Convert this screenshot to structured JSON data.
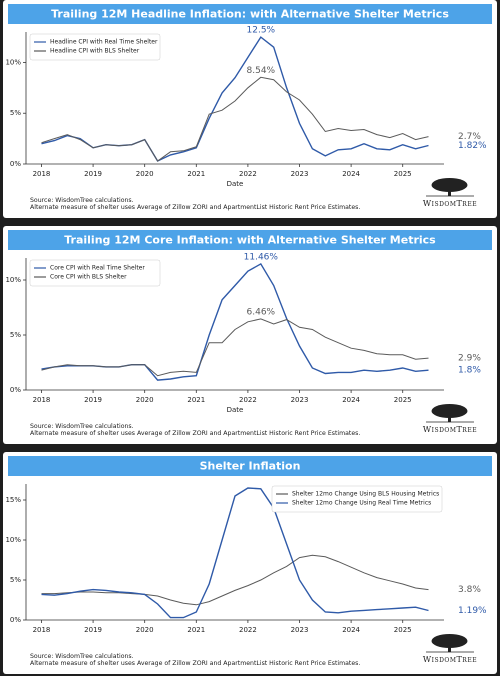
{
  "chart_data": [
    {
      "type": "line",
      "title": "Trailing 12M Headline Inflation: with Alternative Shelter Metrics",
      "x": [
        2018,
        2018.25,
        2018.5,
        2018.75,
        2019,
        2019.25,
        2019.5,
        2019.75,
        2020,
        2020.25,
        2020.5,
        2020.75,
        2021,
        2021.25,
        2021.5,
        2021.75,
        2022,
        2022.25,
        2022.5,
        2022.75,
        2023,
        2023.25,
        2023.5,
        2023.75,
        2024,
        2024.25,
        2024.5,
        2024.75,
        2025,
        2025.25,
        2025.5
      ],
      "series": [
        {
          "name": "Headline CPI with Real Time Shelter",
          "color": "#2f5aa8",
          "values": [
            2.0,
            2.3,
            2.8,
            2.5,
            1.6,
            1.9,
            1.8,
            1.9,
            2.4,
            0.3,
            0.9,
            1.2,
            1.6,
            4.5,
            7.0,
            8.5,
            10.5,
            12.5,
            11.5,
            7.5,
            4.0,
            1.5,
            0.8,
            1.4,
            1.5,
            2.0,
            1.5,
            1.4,
            1.9,
            1.5,
            1.82
          ],
          "value_labels": [
            null,
            null,
            null,
            null,
            null,
            null,
            null,
            null,
            null,
            null,
            null,
            null,
            null,
            null,
            null,
            null,
            null,
            "12.5%",
            null,
            null,
            null,
            null,
            null,
            null,
            null,
            null,
            null,
            null,
            null,
            null,
            "1.82%"
          ]
        },
        {
          "name": "Headline CPI with BLS Shelter",
          "color": "#5a5a5a",
          "values": [
            2.1,
            2.5,
            2.9,
            2.4,
            1.6,
            1.9,
            1.8,
            1.9,
            2.4,
            0.3,
            1.2,
            1.3,
            1.7,
            4.9,
            5.3,
            6.2,
            7.5,
            8.54,
            8.3,
            7.1,
            6.3,
            4.9,
            3.2,
            3.5,
            3.3,
            3.4,
            2.9,
            2.6,
            3.0,
            2.4,
            2.7
          ],
          "value_labels": [
            null,
            null,
            null,
            null,
            null,
            null,
            null,
            null,
            null,
            null,
            null,
            null,
            null,
            null,
            null,
            null,
            null,
            "8.54%",
            null,
            null,
            null,
            null,
            null,
            null,
            null,
            null,
            null,
            null,
            null,
            null,
            "2.7%"
          ]
        }
      ],
      "xlim": [
        2017.7,
        2025.8
      ],
      "ylim": [
        0,
        13
      ],
      "xticks": [
        2018,
        2019,
        2020,
        2021,
        2022,
        2023,
        2024,
        2025
      ],
      "yticks": [
        {
          "value": 0,
          "label": "0%"
        },
        {
          "value": 5,
          "label": "5%"
        },
        {
          "value": 10,
          "label": "10%"
        }
      ],
      "xlabel": "Date",
      "legend": "upper left",
      "grid": false,
      "source": "Source: WisdomTree calculations.",
      "note": "Alternate measure of shelter uses Average of Zillow ZORI and ApartmentList Historic Rent Price Estimates.",
      "logo": "WisdomTree"
    },
    {
      "type": "line",
      "title": "Trailing 12M Core Inflation: with Alternative Shelter Metrics",
      "x": [
        2018,
        2018.25,
        2018.5,
        2018.75,
        2019,
        2019.25,
        2019.5,
        2019.75,
        2020,
        2020.25,
        2020.5,
        2020.75,
        2021,
        2021.25,
        2021.5,
        2021.75,
        2022,
        2022.25,
        2022.5,
        2022.75,
        2023,
        2023.25,
        2023.5,
        2023.75,
        2024,
        2024.25,
        2024.5,
        2024.75,
        2025,
        2025.25,
        2025.5
      ],
      "series": [
        {
          "name": "Core CPI with Real Time Shelter",
          "color": "#2f5aa8",
          "values": [
            1.9,
            2.1,
            2.2,
            2.2,
            2.2,
            2.1,
            2.1,
            2.3,
            2.3,
            0.9,
            1.0,
            1.2,
            1.3,
            5.0,
            8.2,
            9.5,
            10.8,
            11.46,
            9.5,
            6.5,
            4.0,
            2.0,
            1.5,
            1.6,
            1.6,
            1.8,
            1.7,
            1.8,
            2.0,
            1.7,
            1.8
          ],
          "value_labels": [
            null,
            null,
            null,
            null,
            null,
            null,
            null,
            null,
            null,
            null,
            null,
            null,
            null,
            null,
            null,
            null,
            null,
            "11.46%",
            null,
            null,
            null,
            null,
            null,
            null,
            null,
            null,
            null,
            null,
            null,
            null,
            "1.8%"
          ]
        },
        {
          "name": "Core CPI with BLS Shelter",
          "color": "#5a5a5a",
          "values": [
            1.8,
            2.1,
            2.3,
            2.2,
            2.2,
            2.1,
            2.1,
            2.3,
            2.3,
            1.3,
            1.6,
            1.7,
            1.6,
            4.3,
            4.3,
            5.5,
            6.2,
            6.46,
            6.0,
            6.4,
            5.7,
            5.5,
            4.8,
            4.3,
            3.8,
            3.6,
            3.3,
            3.2,
            3.2,
            2.8,
            2.9
          ],
          "value_labels": [
            null,
            null,
            null,
            null,
            null,
            null,
            null,
            null,
            null,
            null,
            null,
            null,
            null,
            null,
            null,
            null,
            null,
            "6.46%",
            null,
            null,
            null,
            null,
            null,
            null,
            null,
            null,
            null,
            null,
            null,
            null,
            "2.9%"
          ]
        }
      ],
      "xlim": [
        2017.7,
        2025.8
      ],
      "ylim": [
        0,
        12
      ],
      "xticks": [
        2018,
        2019,
        2020,
        2021,
        2022,
        2023,
        2024,
        2025
      ],
      "yticks": [
        {
          "value": 0,
          "label": "0%"
        },
        {
          "value": 5,
          "label": "5%"
        },
        {
          "value": 10,
          "label": "10%"
        }
      ],
      "xlabel": "Date",
      "legend": "upper left",
      "grid": false,
      "source": "Source: WisdomTree calculations.",
      "note": "Alternate measure of shelter uses Average of Zillow ZORI and ApartmentList Historic Rent Price Estimates.",
      "logo": "WisdomTree"
    },
    {
      "type": "line",
      "title": "Shelter Inflation",
      "x": [
        2018,
        2018.25,
        2018.5,
        2018.75,
        2019,
        2019.25,
        2019.5,
        2019.75,
        2020,
        2020.25,
        2020.5,
        2020.75,
        2021,
        2021.25,
        2021.5,
        2021.75,
        2022,
        2022.25,
        2022.5,
        2022.75,
        2023,
        2023.25,
        2023.5,
        2023.75,
        2024,
        2024.25,
        2024.5,
        2024.75,
        2025,
        2025.25,
        2025.5
      ],
      "series": [
        {
          "name": "Shelter 12mo Change Using BLS Housing Metrics",
          "color": "#5a5a5a",
          "values": [
            3.3,
            3.3,
            3.4,
            3.5,
            3.5,
            3.4,
            3.4,
            3.3,
            3.2,
            3.0,
            2.5,
            2.1,
            1.9,
            2.3,
            3.0,
            3.7,
            4.3,
            5.0,
            5.9,
            6.7,
            7.8,
            8.1,
            7.9,
            7.3,
            6.6,
            5.9,
            5.3,
            4.9,
            4.5,
            4.0,
            3.8
          ],
          "value_labels": [
            null,
            null,
            null,
            null,
            null,
            null,
            null,
            null,
            null,
            null,
            null,
            null,
            null,
            null,
            null,
            null,
            null,
            null,
            null,
            null,
            null,
            null,
            null,
            null,
            null,
            null,
            null,
            null,
            null,
            null,
            "3.8%"
          ]
        },
        {
          "name": "Shelter 12mo Change Using Real Time Metrics",
          "color": "#2f5aa8",
          "values": [
            3.2,
            3.1,
            3.3,
            3.6,
            3.8,
            3.7,
            3.5,
            3.4,
            3.2,
            2.0,
            0.3,
            0.3,
            1.0,
            4.5,
            10.0,
            15.5,
            16.5,
            16.4,
            14.0,
            9.5,
            5.0,
            2.5,
            1.0,
            0.9,
            1.1,
            1.2,
            1.3,
            1.4,
            1.5,
            1.6,
            1.19
          ],
          "value_labels": [
            null,
            null,
            null,
            null,
            null,
            null,
            null,
            null,
            null,
            null,
            null,
            null,
            null,
            null,
            null,
            null,
            null,
            null,
            null,
            null,
            null,
            null,
            null,
            null,
            null,
            null,
            null,
            null,
            null,
            null,
            "1.19%"
          ]
        }
      ],
      "xlim": [
        2017.7,
        2025.8
      ],
      "ylim": [
        0,
        17
      ],
      "xticks": [
        2018,
        2019,
        2020,
        2021,
        2022,
        2023,
        2024,
        2025
      ],
      "yticks": [
        {
          "value": 0,
          "label": "0%"
        },
        {
          "value": 5,
          "label": "5%"
        },
        {
          "value": 10,
          "label": "10%"
        },
        {
          "value": 15,
          "label": "15%"
        }
      ],
      "legend": "upper right",
      "grid": false,
      "source": "Source: WisdomTree calculations.",
      "note": "Alternate measure of shelter uses Average of Zillow ZORI and ApartmentList Historic Rent Price Estimates.",
      "logo": "WisdomTree"
    }
  ]
}
